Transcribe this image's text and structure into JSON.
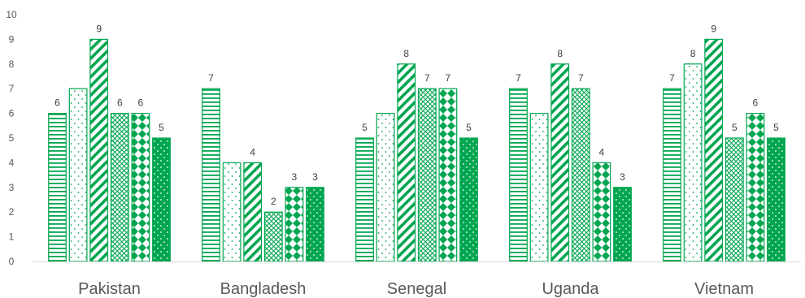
{
  "chart_data": {
    "type": "bar",
    "title": "",
    "xlabel": "",
    "ylabel": "",
    "ylim": [
      0,
      10
    ],
    "yticks": [
      0,
      1,
      2,
      3,
      4,
      5,
      6,
      7,
      8,
      9,
      10
    ],
    "grid": false,
    "legend": "none",
    "categories": [
      "Pakistan",
      "Bangladesh",
      "Senegal",
      "Uganda",
      "Vietnam"
    ],
    "series": [
      {
        "pattern": "horizontal-lines",
        "values": [
          6,
          7,
          5,
          7,
          7
        ]
      },
      {
        "pattern": "sparse-dots",
        "values": [
          7,
          4,
          6,
          6,
          8
        ]
      },
      {
        "pattern": "diagonal-stripes",
        "values": [
          9,
          4,
          8,
          8,
          9
        ]
      },
      {
        "pattern": "crosshatch",
        "values": [
          6,
          2,
          7,
          7,
          5
        ]
      },
      {
        "pattern": "diamonds",
        "values": [
          6,
          3,
          7,
          4,
          6
        ]
      },
      {
        "pattern": "solid-dotted",
        "values": [
          5,
          3,
          5,
          3,
          5
        ]
      }
    ],
    "data_labels_shown": [
      [
        true,
        false,
        true,
        true,
        true,
        true
      ],
      [
        true,
        false,
        true,
        true,
        true,
        true
      ],
      [
        true,
        false,
        true,
        true,
        true,
        true
      ],
      [
        true,
        false,
        true,
        true,
        true,
        true
      ],
      [
        true,
        true,
        true,
        true,
        true,
        true
      ]
    ],
    "colors": {
      "accent": "#00a64f",
      "axis_line": "#d9d9d9",
      "text": "#595959"
    }
  }
}
